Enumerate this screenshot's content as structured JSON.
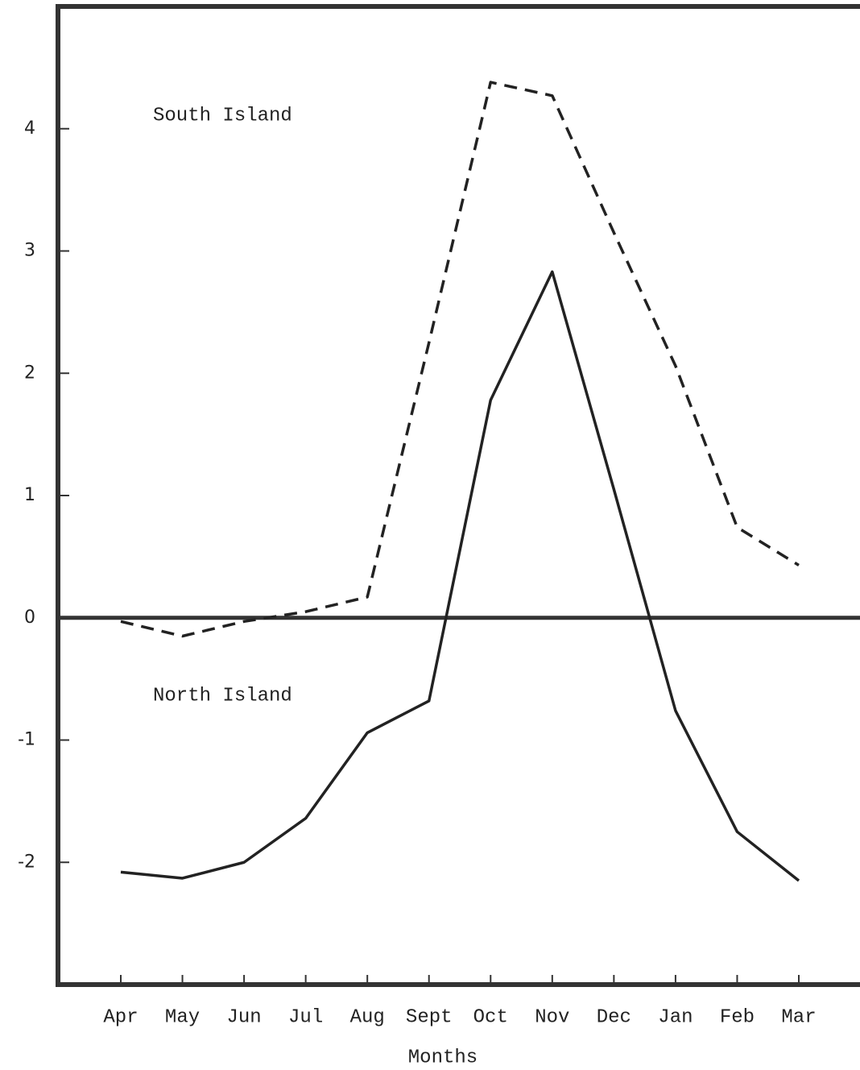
{
  "chart_data": {
    "type": "line",
    "x_label": "Months",
    "categories": [
      "Apr",
      "May",
      "Jun",
      "Jul",
      "Aug",
      "Sept",
      "Oct",
      "Nov",
      "Dec",
      "Jan",
      "Feb",
      "Mar"
    ],
    "series": [
      {
        "name": "South Island",
        "color": "#222222",
        "line_style": "dashed",
        "values": [
          -0.03,
          -0.15,
          -0.03,
          0.05,
          0.17,
          2.25,
          4.38,
          4.27,
          3.15,
          2.06,
          0.74,
          0.43
        ]
      },
      {
        "name": "North Island",
        "color": "#222222",
        "line_style": "solid",
        "values": [
          -2.08,
          -2.13,
          -2.0,
          -1.64,
          -0.94,
          -0.68,
          1.78,
          2.83,
          1.05,
          -0.76,
          -1.75,
          -2.15
        ]
      }
    ],
    "ylim": [
      -3,
      5
    ],
    "yticks": [
      -2,
      -1,
      0,
      1,
      2,
      3,
      4
    ],
    "grid": false
  }
}
